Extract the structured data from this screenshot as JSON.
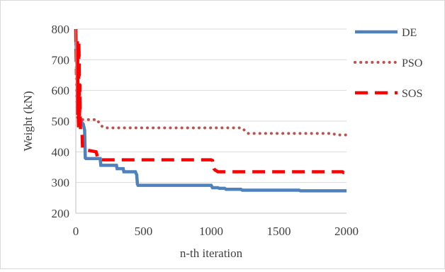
{
  "chart_data": {
    "type": "line",
    "title": "",
    "xlabel": "n-th iteration",
    "ylabel": "Weight (kN)",
    "xlim": [
      0,
      2000
    ],
    "ylim": [
      200,
      800
    ],
    "x_ticks": [
      0,
      500,
      1000,
      1500,
      2000
    ],
    "y_ticks": [
      200,
      300,
      400,
      500,
      600,
      700,
      800
    ],
    "grid": "horizontal",
    "legend": "right",
    "series": [
      {
        "name": "DE",
        "color": "#4f81bd",
        "style": "solid",
        "x": [
          0,
          3,
          5,
          8,
          10,
          14,
          15,
          22,
          25,
          30,
          38,
          45,
          55,
          60,
          65,
          70,
          75,
          80,
          180,
          185,
          300,
          305,
          350,
          355,
          440,
          450,
          455,
          460,
          1000,
          1010,
          1050,
          1060,
          1100,
          1110,
          1220,
          1230,
          1650,
          1660,
          2000
        ],
        "y": [
          760,
          745,
          700,
          680,
          650,
          620,
          545,
          540,
          510,
          505,
          500,
          495,
          490,
          480,
          470,
          380,
          378,
          378,
          378,
          356,
          356,
          345,
          345,
          335,
          335,
          325,
          295,
          291,
          291,
          283,
          283,
          281,
          281,
          278,
          278,
          275,
          275,
          273,
          273
        ]
      },
      {
        "name": "PSO",
        "color": "#c0504d",
        "style": "dotted",
        "x": [
          0,
          3,
          5,
          8,
          10,
          14,
          18,
          20,
          40,
          160,
          170,
          180,
          200,
          220,
          1230,
          1250,
          1270,
          1900,
          1920,
          2000
        ],
        "y": [
          750,
          720,
          600,
          520,
          560,
          505,
          510,
          500,
          505,
          505,
          495,
          490,
          480,
          478,
          478,
          468,
          460,
          460,
          455,
          455
        ]
      },
      {
        "name": "SOS",
        "color": "#ff0000",
        "style": "dashed",
        "x": [
          0,
          3,
          5,
          8,
          10,
          12,
          14,
          16,
          20,
          22,
          25,
          28,
          30,
          32,
          35,
          45,
          50,
          55,
          60,
          80,
          90,
          150,
          165,
          180,
          1000,
          1010,
          1015,
          1020,
          1030,
          1040,
          1050,
          1970,
          1980,
          2000
        ],
        "y": [
          800,
          700,
          650,
          720,
          520,
          760,
          690,
          560,
          480,
          760,
          700,
          480,
          620,
          520,
          470,
          470,
          410,
          410,
          410,
          408,
          405,
          400,
          375,
          374,
          374,
          372,
          355,
          345,
          340,
          338,
          335,
          335,
          332,
          332
        ]
      }
    ]
  }
}
